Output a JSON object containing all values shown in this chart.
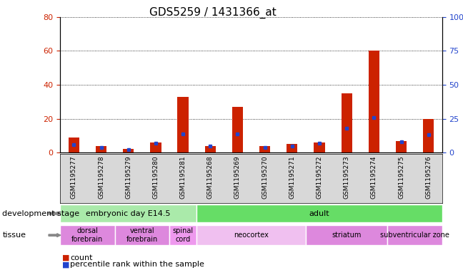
{
  "title": "GDS5259 / 1431366_at",
  "samples": [
    "GSM1195277",
    "GSM1195278",
    "GSM1195279",
    "GSM1195280",
    "GSM1195281",
    "GSM1195268",
    "GSM1195269",
    "GSM1195270",
    "GSM1195271",
    "GSM1195272",
    "GSM1195273",
    "GSM1195274",
    "GSM1195275",
    "GSM1195276"
  ],
  "counts": [
    9,
    4,
    2,
    6,
    33,
    4,
    27,
    4,
    5,
    6,
    35,
    60,
    7,
    20
  ],
  "percentiles": [
    6,
    4,
    2,
    7,
    14,
    5,
    14,
    4,
    5,
    7,
    18,
    26,
    8,
    13
  ],
  "ylim_left": [
    0,
    80
  ],
  "ylim_right": [
    0,
    100
  ],
  "yticks_left": [
    0,
    20,
    40,
    60,
    80
  ],
  "yticks_right": [
    0,
    25,
    50,
    75,
    100
  ],
  "bar_color": "#cc2200",
  "percentile_color": "#2244cc",
  "bg_color": "#d8d8d8",
  "plot_bg": "#ffffff",
  "dev_stage_groups": [
    {
      "label": "embryonic day E14.5",
      "start": 0,
      "end": 5,
      "color": "#aaeaaa"
    },
    {
      "label": "adult",
      "start": 5,
      "end": 14,
      "color": "#66dd66"
    }
  ],
  "tissue_groups": [
    {
      "label": "dorsal\nforebrain",
      "start": 0,
      "end": 2,
      "color": "#dd88dd"
    },
    {
      "label": "ventral\nforebrain",
      "start": 2,
      "end": 4,
      "color": "#dd88dd"
    },
    {
      "label": "spinal\ncord",
      "start": 4,
      "end": 5,
      "color": "#ee99ee"
    },
    {
      "label": "neocortex",
      "start": 5,
      "end": 9,
      "color": "#f0c0f0"
    },
    {
      "label": "striatum",
      "start": 9,
      "end": 12,
      "color": "#dd88dd"
    },
    {
      "label": "subventricular zone",
      "start": 12,
      "end": 14,
      "color": "#dd88dd"
    }
  ],
  "legend_count_label": "count",
  "legend_pct_label": "percentile rank within the sample",
  "dev_stage_label": "development stage",
  "tissue_label": "tissue",
  "title_fontsize": 11,
  "tick_fontsize": 7,
  "label_fontsize": 8,
  "annotation_fontsize": 8,
  "sample_fontsize": 6.5
}
